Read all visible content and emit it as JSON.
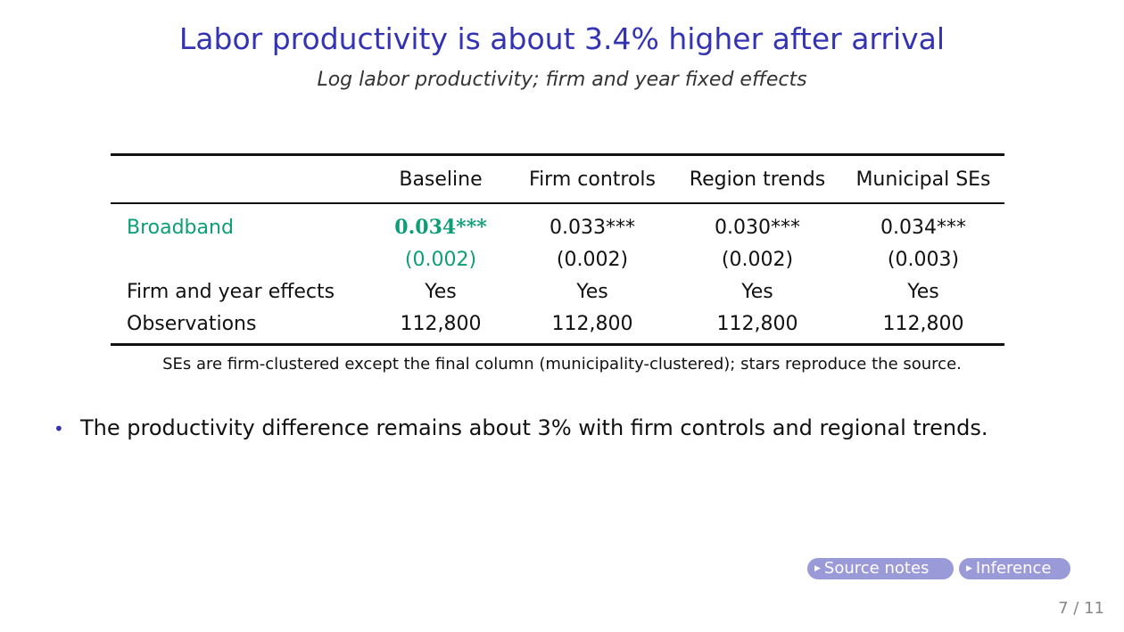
{
  "slide": {
    "title": "Labor productivity is about 3.4% higher after arrival",
    "subtitle": "Log labor productivity; firm and year fixed effects"
  },
  "table": {
    "headers": [
      "",
      "Baseline",
      "Firm controls",
      "Region trends",
      "Municipal SEs"
    ],
    "rows": [
      {
        "label": "Broadband",
        "cells": [
          "0.034***",
          "0.033***",
          "0.030***",
          "0.034***"
        ]
      },
      {
        "label": "",
        "cells": [
          "(0.002)",
          "(0.002)",
          "(0.002)",
          "(0.003)"
        ]
      },
      {
        "label": "Firm and year effects",
        "cells": [
          "Yes",
          "Yes",
          "Yes",
          "Yes"
        ]
      },
      {
        "label": "Observations",
        "cells": [
          "112,800",
          "112,800",
          "112,800",
          "112,800"
        ]
      }
    ],
    "note": "SEs are firm-clustered except the final column (municipality-clustered); stars reproduce the source."
  },
  "bullets": [
    "The productivity difference remains about 3% with firm controls and regional trends."
  ],
  "nav": {
    "buttons": [
      "Source notes",
      "Inference"
    ],
    "page": "7 / 11"
  },
  "colors": {
    "title": "#3333b3",
    "highlight": "#0d9e78",
    "button_bg": "#9a9ad9"
  }
}
